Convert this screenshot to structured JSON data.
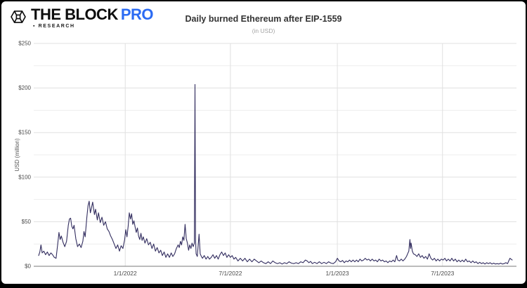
{
  "header": {
    "brand_name": "THE BLOCK",
    "brand_pro": "PRO",
    "brand_pro_color": "#2b6bf3",
    "research_label": "▪ RESEARCH"
  },
  "chart_data": {
    "type": "line",
    "title": "Daily burned Ethereum after EIP-1559",
    "subtitle": "(in USD)",
    "ylabel": "USD (million)",
    "unit": "USD million",
    "y_max": 250,
    "y_ticks": [
      {
        "value": 0,
        "label": "$0"
      },
      {
        "value": 50,
        "label": "$50"
      },
      {
        "value": 100,
        "label": "$100"
      },
      {
        "value": 150,
        "label": "$150"
      },
      {
        "value": 200,
        "label": "$200"
      },
      {
        "value": 250,
        "label": "$250"
      }
    ],
    "y_gridlines": [
      25,
      50,
      75,
      100,
      125,
      150,
      175,
      200,
      225,
      250
    ],
    "x_domain": [
      "2021-08-05",
      "2023-10-29"
    ],
    "x_ticks": [
      {
        "date": "2022-01-01",
        "label": "1/1/2022"
      },
      {
        "date": "2022-07-01",
        "label": "7/1/2022"
      },
      {
        "date": "2023-01-01",
        "label": "1/1/2023"
      },
      {
        "date": "2023-07-01",
        "label": "7/1/2023"
      }
    ],
    "colors": {
      "line": "#322d5f",
      "grid_major": "#e0e0e0",
      "grid_minor": "#ededed",
      "axis": "#7a7a7a",
      "tick_text": "#4a4a4a"
    },
    "points": [
      [
        "2021-08-05",
        12
      ],
      [
        "2021-08-07",
        16
      ],
      [
        "2021-08-09",
        24
      ],
      [
        "2021-08-11",
        15
      ],
      [
        "2021-08-14",
        17
      ],
      [
        "2021-08-17",
        13
      ],
      [
        "2021-08-20",
        16
      ],
      [
        "2021-08-23",
        12
      ],
      [
        "2021-08-26",
        15
      ],
      [
        "2021-08-29",
        13
      ],
      [
        "2021-09-01",
        10
      ],
      [
        "2021-09-04",
        9
      ],
      [
        "2021-09-07",
        26
      ],
      [
        "2021-09-09",
        38
      ],
      [
        "2021-09-11",
        30
      ],
      [
        "2021-09-13",
        34
      ],
      [
        "2021-09-16",
        27
      ],
      [
        "2021-09-19",
        22
      ],
      [
        "2021-09-22",
        28
      ],
      [
        "2021-09-25",
        46
      ],
      [
        "2021-09-27",
        53
      ],
      [
        "2021-09-29",
        54
      ],
      [
        "2021-10-01",
        45
      ],
      [
        "2021-10-03",
        42
      ],
      [
        "2021-10-05",
        46
      ],
      [
        "2021-10-08",
        31
      ],
      [
        "2021-10-11",
        22
      ],
      [
        "2021-10-14",
        25
      ],
      [
        "2021-10-17",
        21
      ],
      [
        "2021-10-20",
        28
      ],
      [
        "2021-10-22",
        39
      ],
      [
        "2021-10-24",
        33
      ],
      [
        "2021-10-27",
        55
      ],
      [
        "2021-10-29",
        68
      ],
      [
        "2021-10-31",
        73
      ],
      [
        "2021-11-02",
        60
      ],
      [
        "2021-11-04",
        66
      ],
      [
        "2021-11-06",
        72
      ],
      [
        "2021-11-09",
        58
      ],
      [
        "2021-11-11",
        64
      ],
      [
        "2021-11-14",
        52
      ],
      [
        "2021-11-16",
        60
      ],
      [
        "2021-11-19",
        49
      ],
      [
        "2021-11-22",
        55
      ],
      [
        "2021-11-25",
        46
      ],
      [
        "2021-11-28",
        50
      ],
      [
        "2021-12-01",
        42
      ],
      [
        "2021-12-04",
        39
      ],
      [
        "2021-12-07",
        34
      ],
      [
        "2021-12-10",
        30
      ],
      [
        "2021-12-13",
        25
      ],
      [
        "2021-12-16",
        20
      ],
      [
        "2021-12-19",
        24
      ],
      [
        "2021-12-22",
        17
      ],
      [
        "2021-12-25",
        23
      ],
      [
        "2021-12-28",
        20
      ],
      [
        "2021-12-31",
        30
      ],
      [
        "2022-01-02",
        41
      ],
      [
        "2022-01-04",
        33
      ],
      [
        "2022-01-06",
        45
      ],
      [
        "2022-01-08",
        60
      ],
      [
        "2022-01-10",
        53
      ],
      [
        "2022-01-12",
        59
      ],
      [
        "2022-01-14",
        47
      ],
      [
        "2022-01-16",
        51
      ],
      [
        "2022-01-18",
        44
      ],
      [
        "2022-01-20",
        38
      ],
      [
        "2022-01-22",
        43
      ],
      [
        "2022-01-24",
        34
      ],
      [
        "2022-01-26",
        30
      ],
      [
        "2022-01-28",
        37
      ],
      [
        "2022-01-30",
        29
      ],
      [
        "2022-02-01",
        33
      ],
      [
        "2022-02-04",
        26
      ],
      [
        "2022-02-07",
        31
      ],
      [
        "2022-02-10",
        24
      ],
      [
        "2022-02-13",
        27
      ],
      [
        "2022-02-16",
        20
      ],
      [
        "2022-02-19",
        25
      ],
      [
        "2022-02-22",
        17
      ],
      [
        "2022-02-25",
        21
      ],
      [
        "2022-02-28",
        15
      ],
      [
        "2022-03-03",
        18
      ],
      [
        "2022-03-06",
        12
      ],
      [
        "2022-03-09",
        16
      ],
      [
        "2022-03-12",
        10
      ],
      [
        "2022-03-15",
        14
      ],
      [
        "2022-03-18",
        10
      ],
      [
        "2022-03-21",
        15
      ],
      [
        "2022-03-24",
        11
      ],
      [
        "2022-03-27",
        14
      ],
      [
        "2022-03-30",
        20
      ],
      [
        "2022-04-02",
        24
      ],
      [
        "2022-04-04",
        21
      ],
      [
        "2022-04-06",
        28
      ],
      [
        "2022-04-08",
        24
      ],
      [
        "2022-04-10",
        33
      ],
      [
        "2022-04-12",
        29
      ],
      [
        "2022-04-14",
        47
      ],
      [
        "2022-04-16",
        31
      ],
      [
        "2022-04-18",
        26
      ],
      [
        "2022-04-20",
        18
      ],
      [
        "2022-04-22",
        24
      ],
      [
        "2022-04-24",
        20
      ],
      [
        "2022-04-26",
        26
      ],
      [
        "2022-04-28",
        22
      ],
      [
        "2022-04-30",
        26
      ],
      [
        "2022-05-01",
        204
      ],
      [
        "2022-05-02",
        30
      ],
      [
        "2022-05-03",
        14
      ],
      [
        "2022-05-05",
        11
      ],
      [
        "2022-05-08",
        36
      ],
      [
        "2022-05-10",
        14
      ],
      [
        "2022-05-12",
        11
      ],
      [
        "2022-05-14",
        9
      ],
      [
        "2022-05-17",
        12
      ],
      [
        "2022-05-20",
        8
      ],
      [
        "2022-05-23",
        11
      ],
      [
        "2022-05-26",
        8
      ],
      [
        "2022-05-29",
        10
      ],
      [
        "2022-06-01",
        13
      ],
      [
        "2022-06-04",
        9
      ],
      [
        "2022-06-07",
        12
      ],
      [
        "2022-06-10",
        8
      ],
      [
        "2022-06-13",
        13
      ],
      [
        "2022-06-16",
        16
      ],
      [
        "2022-06-19",
        12
      ],
      [
        "2022-06-22",
        15
      ],
      [
        "2022-06-25",
        10
      ],
      [
        "2022-06-28",
        13
      ],
      [
        "2022-07-01",
        10
      ],
      [
        "2022-07-04",
        12
      ],
      [
        "2022-07-07",
        8
      ],
      [
        "2022-07-10",
        10
      ],
      [
        "2022-07-14",
        6
      ],
      [
        "2022-07-18",
        9
      ],
      [
        "2022-07-22",
        6
      ],
      [
        "2022-07-26",
        9
      ],
      [
        "2022-07-30",
        5
      ],
      [
        "2022-08-03",
        8
      ],
      [
        "2022-08-07",
        5
      ],
      [
        "2022-08-11",
        8
      ],
      [
        "2022-08-15",
        6
      ],
      [
        "2022-08-19",
        4
      ],
      [
        "2022-08-23",
        6
      ],
      [
        "2022-08-27",
        4
      ],
      [
        "2022-08-31",
        3
      ],
      [
        "2022-09-04",
        5
      ],
      [
        "2022-09-08",
        3
      ],
      [
        "2022-09-12",
        6
      ],
      [
        "2022-09-16",
        4
      ],
      [
        "2022-09-20",
        3
      ],
      [
        "2022-09-24",
        4
      ],
      [
        "2022-09-28",
        2.5
      ],
      [
        "2022-10-02",
        4
      ],
      [
        "2022-10-06",
        3
      ],
      [
        "2022-10-10",
        5
      ],
      [
        "2022-10-14",
        3.5
      ],
      [
        "2022-10-18",
        3
      ],
      [
        "2022-10-22",
        4
      ],
      [
        "2022-10-26",
        3
      ],
      [
        "2022-10-30",
        5
      ],
      [
        "2022-11-03",
        4
      ],
      [
        "2022-11-07",
        7
      ],
      [
        "2022-11-10",
        6
      ],
      [
        "2022-11-13",
        4
      ],
      [
        "2022-11-16",
        5.5
      ],
      [
        "2022-11-19",
        3
      ],
      [
        "2022-11-23",
        4.5
      ],
      [
        "2022-11-27",
        3
      ],
      [
        "2022-12-01",
        5
      ],
      [
        "2022-12-05",
        3
      ],
      [
        "2022-12-09",
        4.5
      ],
      [
        "2022-12-13",
        3
      ],
      [
        "2022-12-17",
        5
      ],
      [
        "2022-12-21",
        3.5
      ],
      [
        "2022-12-25",
        3
      ],
      [
        "2022-12-29",
        5
      ],
      [
        "2023-01-01",
        9
      ],
      [
        "2023-01-04",
        6
      ],
      [
        "2023-01-07",
        5
      ],
      [
        "2023-01-10",
        6.5
      ],
      [
        "2023-01-13",
        4
      ],
      [
        "2023-01-16",
        6
      ],
      [
        "2023-01-19",
        5
      ],
      [
        "2023-01-22",
        7
      ],
      [
        "2023-01-25",
        5
      ],
      [
        "2023-01-28",
        7
      ],
      [
        "2023-01-31",
        5
      ],
      [
        "2023-02-03",
        7
      ],
      [
        "2023-02-06",
        5
      ],
      [
        "2023-02-09",
        8
      ],
      [
        "2023-02-12",
        6
      ],
      [
        "2023-02-15",
        7
      ],
      [
        "2023-02-18",
        9
      ],
      [
        "2023-02-21",
        7
      ],
      [
        "2023-02-24",
        8
      ],
      [
        "2023-02-27",
        6
      ],
      [
        "2023-03-02",
        8
      ],
      [
        "2023-03-05",
        6
      ],
      [
        "2023-03-08",
        7
      ],
      [
        "2023-03-11",
        5
      ],
      [
        "2023-03-14",
        8
      ],
      [
        "2023-03-17",
        6
      ],
      [
        "2023-03-20",
        7
      ],
      [
        "2023-03-23",
        5
      ],
      [
        "2023-03-26",
        6
      ],
      [
        "2023-03-29",
        4
      ],
      [
        "2023-04-01",
        6
      ],
      [
        "2023-04-04",
        5
      ],
      [
        "2023-04-07",
        7
      ],
      [
        "2023-04-10",
        5
      ],
      [
        "2023-04-13",
        12
      ],
      [
        "2023-04-15",
        7
      ],
      [
        "2023-04-18",
        6
      ],
      [
        "2023-04-21",
        8
      ],
      [
        "2023-04-24",
        6
      ],
      [
        "2023-04-27",
        8
      ],
      [
        "2023-04-30",
        11
      ],
      [
        "2023-05-02",
        14
      ],
      [
        "2023-05-04",
        17
      ],
      [
        "2023-05-05",
        24
      ],
      [
        "2023-05-06",
        30
      ],
      [
        "2023-05-07",
        20
      ],
      [
        "2023-05-08",
        26
      ],
      [
        "2023-05-10",
        17
      ],
      [
        "2023-05-12",
        14
      ],
      [
        "2023-05-15",
        13
      ],
      [
        "2023-05-18",
        11
      ],
      [
        "2023-05-21",
        14
      ],
      [
        "2023-05-24",
        10
      ],
      [
        "2023-05-27",
        12
      ],
      [
        "2023-05-30",
        9
      ],
      [
        "2023-06-02",
        11
      ],
      [
        "2023-06-05",
        8
      ],
      [
        "2023-06-08",
        14
      ],
      [
        "2023-06-11",
        9
      ],
      [
        "2023-06-14",
        7
      ],
      [
        "2023-06-17",
        9
      ],
      [
        "2023-06-20",
        6
      ],
      [
        "2023-06-23",
        8
      ],
      [
        "2023-06-26",
        6
      ],
      [
        "2023-06-29",
        8
      ],
      [
        "2023-07-02",
        7
      ],
      [
        "2023-07-05",
        9
      ],
      [
        "2023-07-08",
        6
      ],
      [
        "2023-07-11",
        8
      ],
      [
        "2023-07-14",
        6
      ],
      [
        "2023-07-17",
        9
      ],
      [
        "2023-07-20",
        6
      ],
      [
        "2023-07-23",
        8
      ],
      [
        "2023-07-26",
        5
      ],
      [
        "2023-07-29",
        7
      ],
      [
        "2023-08-01",
        5
      ],
      [
        "2023-08-04",
        7
      ],
      [
        "2023-08-07",
        5
      ],
      [
        "2023-08-10",
        8
      ],
      [
        "2023-08-13",
        5
      ],
      [
        "2023-08-16",
        6
      ],
      [
        "2023-08-19",
        4
      ],
      [
        "2023-08-22",
        6
      ],
      [
        "2023-08-25",
        4
      ],
      [
        "2023-08-28",
        5
      ],
      [
        "2023-08-31",
        3
      ],
      [
        "2023-09-03",
        4.5
      ],
      [
        "2023-09-06",
        3
      ],
      [
        "2023-09-09",
        4
      ],
      [
        "2023-09-12",
        2.5
      ],
      [
        "2023-09-15",
        4
      ],
      [
        "2023-09-18",
        3
      ],
      [
        "2023-09-21",
        4
      ],
      [
        "2023-09-24",
        2.5
      ],
      [
        "2023-09-27",
        3.5
      ],
      [
        "2023-09-30",
        2.5
      ],
      [
        "2023-10-03",
        3
      ],
      [
        "2023-10-06",
        2.5
      ],
      [
        "2023-10-09",
        3.5
      ],
      [
        "2023-10-12",
        2.5
      ],
      [
        "2023-10-15",
        3
      ],
      [
        "2023-10-18",
        4
      ],
      [
        "2023-10-21",
        3
      ],
      [
        "2023-10-23",
        6
      ],
      [
        "2023-10-25",
        9
      ],
      [
        "2023-10-27",
        8
      ],
      [
        "2023-10-29",
        7
      ]
    ]
  }
}
